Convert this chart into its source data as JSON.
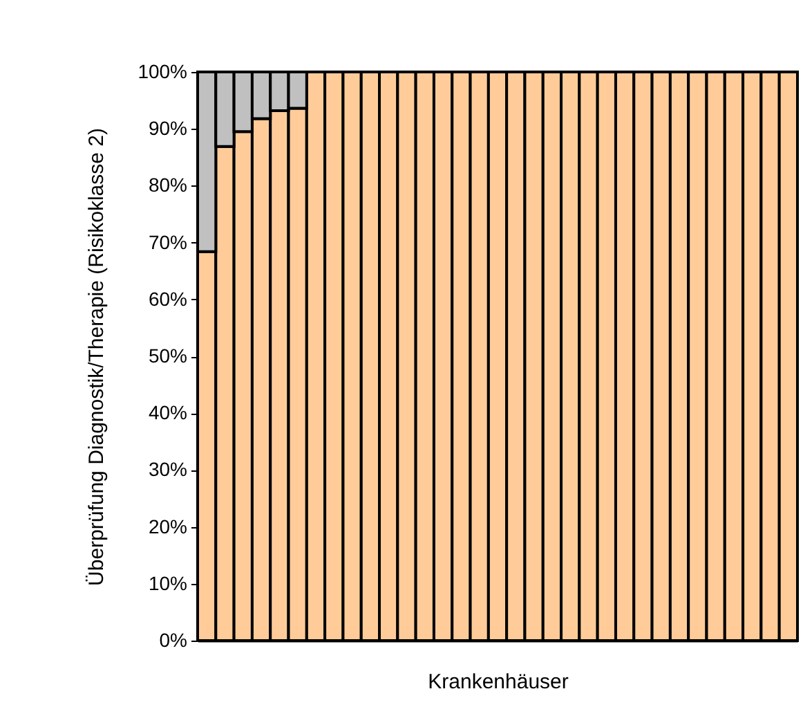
{
  "chart_data": {
    "type": "bar",
    "stacked": true,
    "xlabel": "Krankenhäuser",
    "ylabel": "Überprüfung Diagnostik/Therapie (Risikoklasse 2)",
    "categories": [
      null,
      null,
      null,
      null,
      null,
      null,
      null,
      null,
      null,
      null,
      null,
      null,
      null,
      null,
      null,
      null,
      null,
      null,
      null,
      null,
      null,
      null,
      null,
      null,
      null,
      null,
      null,
      null,
      null,
      null,
      null,
      null,
      null
    ],
    "series": [
      {
        "color": "#ffcc99",
        "values": [
          68.4,
          86.9,
          89.5,
          91.8,
          93.2,
          93.6,
          100,
          100,
          100,
          100,
          100,
          100,
          100,
          100,
          100,
          100,
          100,
          100,
          100,
          100,
          100,
          100,
          100,
          100,
          100,
          100,
          100,
          100,
          100,
          100,
          100,
          100,
          100
        ]
      },
      {
        "color": "#c0c0c0",
        "values": [
          31.6,
          13.1,
          10.5,
          8.2,
          6.8,
          6.4,
          null,
          null,
          null,
          null,
          null,
          null,
          null,
          null,
          null,
          null,
          null,
          null,
          null,
          null,
          null,
          null,
          null,
          null,
          null,
          null,
          null,
          null,
          null,
          null,
          null,
          null,
          null
        ]
      }
    ],
    "ylim": [
      0,
      100
    ],
    "yticks": [
      {
        "value": 0,
        "label": "0%"
      },
      {
        "value": 10,
        "label": "10%"
      },
      {
        "value": 20,
        "label": "20%"
      },
      {
        "value": 30,
        "label": "30%"
      },
      {
        "value": 40,
        "label": "40%"
      },
      {
        "value": 50,
        "label": "50%"
      },
      {
        "value": 60,
        "label": "60%"
      },
      {
        "value": 70,
        "label": "70%"
      },
      {
        "value": 80,
        "label": "80%"
      },
      {
        "value": 90,
        "label": "90%"
      },
      {
        "value": 100,
        "label": "100%"
      }
    ],
    "tick_labels": "y"
  }
}
